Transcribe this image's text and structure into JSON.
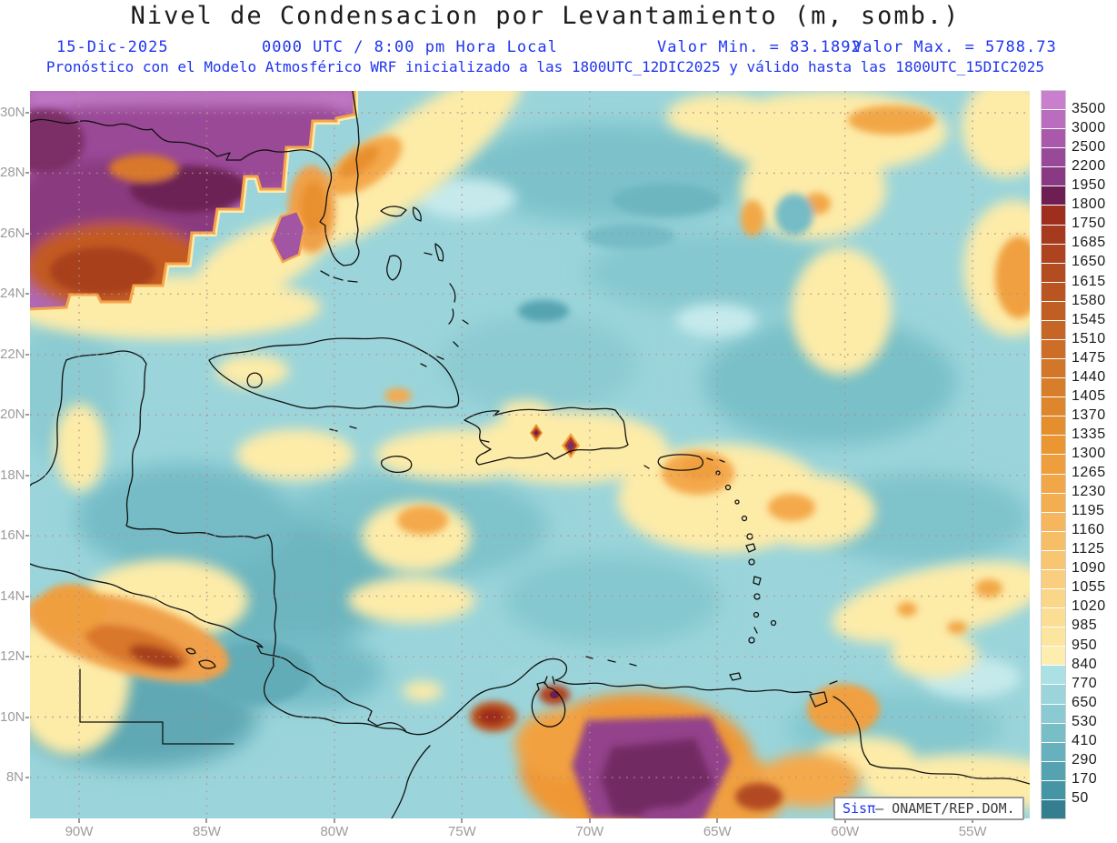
{
  "header": {
    "title": "Nivel de Condensacion por Levantamiento (m, somb.)",
    "date": "15-Dic-2025",
    "run_time": "0000 UTC / 8:00 pm Hora Local",
    "min_value_label": "Valor Min. = 83.1892",
    "max_value_label": "Valor Max. = 5788.73",
    "model_line": "Pronóstico con el Modelo Atmosférico WRF inicializado a las 1800UTC_12DIC2025 y válido hasta las  1800UTC_15DIC2025"
  },
  "axes": {
    "lat_labels": [
      "30N",
      "28N",
      "26N",
      "24N",
      "22N",
      "20N",
      "18N",
      "16N",
      "14N",
      "12N",
      "10N",
      "8N"
    ],
    "lon_labels": [
      "90W",
      "85W",
      "80W",
      "75W",
      "70W",
      "65W",
      "60W",
      "55W"
    ]
  },
  "colorbar": {
    "levels": [
      3500,
      3000,
      2500,
      2200,
      1950,
      1800,
      1750,
      1685,
      1650,
      1615,
      1580,
      1545,
      1510,
      1475,
      1440,
      1405,
      1370,
      1335,
      1300,
      1265,
      1230,
      1195,
      1160,
      1125,
      1090,
      1055,
      1020,
      985,
      950,
      840,
      770,
      650,
      530,
      410,
      290,
      170,
      50
    ],
    "segment_colors": [
      "#c97fce",
      "#ba6cbf",
      "#a958ab",
      "#984a99",
      "#8a3a82",
      "#6d1e52",
      "#9e2f1e",
      "#a63a1e",
      "#ad431f",
      "#b44c21",
      "#ba5522",
      "#c05e24",
      "#c66626",
      "#cc6e27",
      "#d27629",
      "#d87e2a",
      "#de862c",
      "#e48e2e",
      "#ea9632",
      "#ee9e3c",
      "#f1a647",
      "#f3ae52",
      "#f5b65d",
      "#f7be68",
      "#f8c673",
      "#f9ce7e",
      "#fad689",
      "#fbdd94",
      "#fce59f",
      "#fdedae",
      "#abe0e4",
      "#9bd5db",
      "#8acad2",
      "#78bec7",
      "#66b1bd",
      "#55a3b1",
      "#4695a4",
      "#357e90"
    ]
  },
  "watermark": {
    "prefix": "Sisπ",
    "suffix": "– ONAMET/REP.DOM."
  },
  "colors": {
    "header_blue": "#1f35f0",
    "axis_gray": "#9c9c9c",
    "label_dark": "#1a1a1a",
    "grid_dot": "#b09090"
  },
  "chart_data": {
    "type": "heatmap",
    "title": "Nivel de Condensacion por Levantamiento (m, somb.)",
    "valid_time": "15-Dic-2025 0000 UTC / 8:00 pm Hora Local",
    "model_run": "WRF inicializado 1800UTC_12DIC2025, valido hasta 1800UTC_15DIC2025",
    "value_min": 83.1892,
    "value_max": 5788.73,
    "lat_range": [
      "8N",
      "30N"
    ],
    "lon_range": [
      "90W",
      "55W"
    ],
    "contour_levels": [
      50,
      170,
      290,
      410,
      530,
      650,
      770,
      840,
      950,
      985,
      1020,
      1055,
      1090,
      1125,
      1160,
      1195,
      1230,
      1265,
      1300,
      1335,
      1370,
      1405,
      1440,
      1475,
      1510,
      1545,
      1580,
      1615,
      1650,
      1685,
      1750,
      1800,
      1950,
      2200,
      2500,
      3000,
      3500
    ],
    "legend_position": "right",
    "grid": true
  }
}
